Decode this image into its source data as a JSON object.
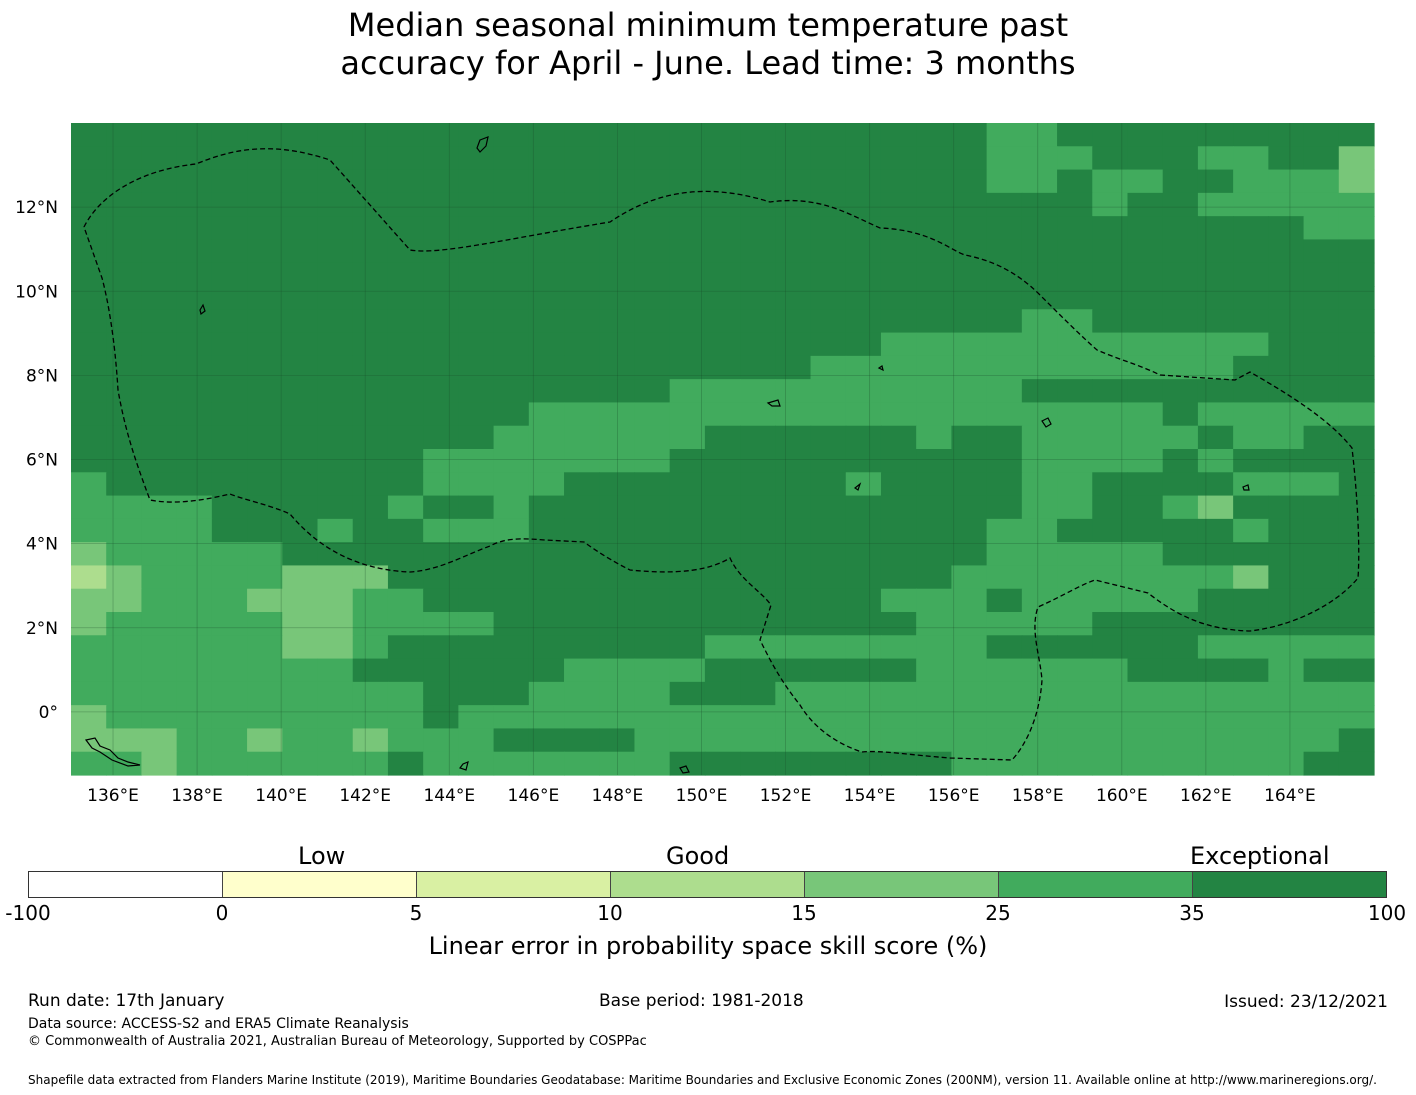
{
  "title": {
    "line1": "Median seasonal minimum temperature past",
    "line2": "accuracy for April - June. Lead time: 3 months"
  },
  "map": {
    "x_ticks": [
      "136°E",
      "138°E",
      "140°E",
      "142°E",
      "144°E",
      "146°E",
      "148°E",
      "150°E",
      "152°E",
      "154°E",
      "156°E",
      "158°E",
      "160°E",
      "162°E",
      "164°E"
    ],
    "y_ticks": [
      "12°N",
      "10°N",
      "8°N",
      "6°N",
      "4°N",
      "2°N",
      "0°"
    ],
    "lon_range": [
      135,
      166
    ],
    "lat_range": [
      -1.5,
      14
    ],
    "grid_cols": 37,
    "grid_rows": 28,
    "palette": [
      "#ffffcc",
      "#d9f0a3",
      "#addd8e",
      "#78c679",
      "#41ab5d",
      "#238443"
    ],
    "grid_rows_data": [
      "5555555555555555555555555544555555555",
      "5555555555555555555555555544455544553",
      "5555555555555555555555555544544554443",
      "5555555555555555555555555555545544444",
      "5555555555555555555555555555555555544",
      "5555555555555555555555555555555555555",
      "5555555555555555555555555555555555555",
      "5555555555555555555555555555555555555",
      "5555555555555555555555555554455555555",
      "5555555555555555555555544444444444555",
      "5555555555555555555554444444444445555",
      "5555555555555555544444444445555555555",
      "5555555555555444444444444444444544444",
      "5555555555554444445555554554444454455",
      "5555555555444444455555555554444545555",
      "4555555555444455555555455554455554445",
      "4444555554554555555555555554455435555",
      "4444555455444555555555555544555554555",
      "3444445555555555555555555544444555555",
      "2344443335555555555555555444444443555",
      "3344433344555555555555544454444455555",
      "3444443344445555555555554444455555555",
      "4444443345555555554444444455555544444",
      "4444444455555544445555554444445555455",
      "4444444444555444455544444444444444444",
      "3444444444544444444444444444444444444",
      "3334434434445555444444444444444444445",
      "4434444445444444455555555444444444455"
    ]
  },
  "colorbar": {
    "category_labels": [
      "Low",
      "Good",
      "Exceptional"
    ],
    "ticks": [
      "-100",
      "0",
      "5",
      "10",
      "15",
      "25",
      "35",
      "100"
    ],
    "colors": [
      "#ffffff",
      "#ffffcc",
      "#d9f0a3",
      "#addd8e",
      "#78c679",
      "#41ab5d",
      "#238443"
    ],
    "xlabel": "Linear error in probability space skill score (%)"
  },
  "footer": {
    "run_date": "Run date: 17th January",
    "base_period": "Base period: 1981-2018",
    "issued": "Issued: 23/12/2021",
    "data_source": "Data source: ACCESS-S2 and ERA5 Climate Reanalysis",
    "copyright": "© Commonwealth of Australia 2021, Australian Bureau of Meteorology, Supported by COSPPac",
    "shapefile": "Shapefile data extracted from Flanders Marine Institute (2019), Maritime Boundaries Geodatabase: Maritime Boundaries and Exclusive Economic Zones (200NM), version 11. Available online at http://www.marineregions.org/."
  }
}
